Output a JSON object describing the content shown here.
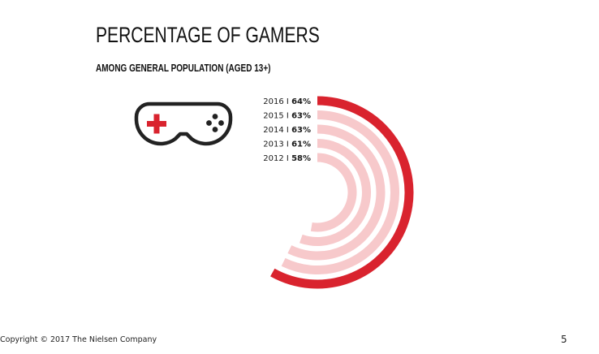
{
  "colors": {
    "highlight": "#d9232e",
    "muted": "#f7c9cb",
    "text": "#1a1a1a"
  },
  "chart_data": {
    "type": "radial-bar",
    "title": "PERCENTAGE OF GAMERS",
    "subtitle": "AMONG GENERAL POPULATION (AGED 13+)",
    "categories": [
      "2016",
      "2015",
      "2014",
      "2013",
      "2012"
    ],
    "values": [
      64,
      63,
      63,
      61,
      58
    ],
    "value_labels": [
      "64%",
      "63%",
      "63%",
      "61%",
      "58%"
    ],
    "separator": "I",
    "highlight_category": "2016"
  },
  "icons": {
    "controller": "game-controller-icon"
  },
  "footer": {
    "copyright": "Copyright © 2017 The Nielsen Company",
    "page_number": "5"
  }
}
